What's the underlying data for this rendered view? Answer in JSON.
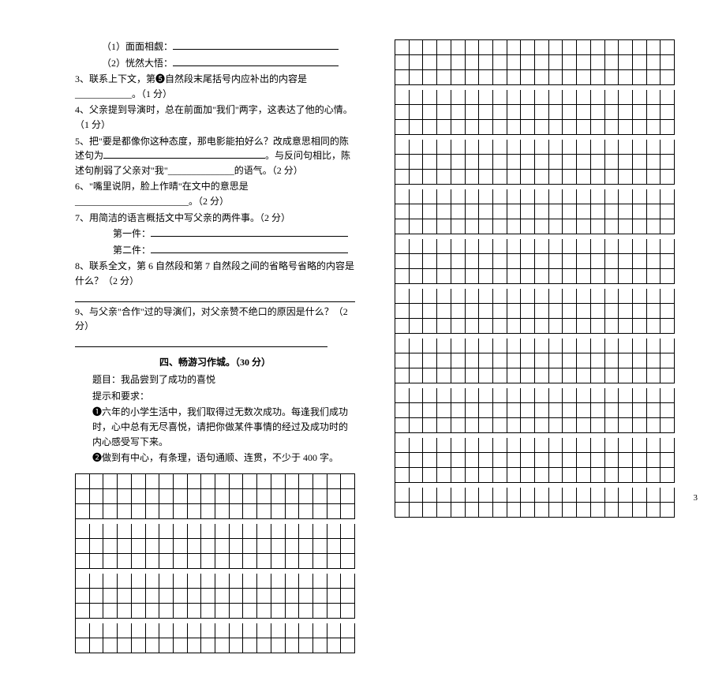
{
  "q1_sub1": "（1）面面相觑：",
  "q1_sub2": "（2）恍然大悟：",
  "q3": "3、联系上下文，第❺自然段末尾括号内应补出的内容是____________。（1 分）",
  "q4": "4、父亲提到导演时，总在前面加\"我们\"两字，这表达了他的心情。（1 分）",
  "q5a": "5、把\"要是都像你这种态度，那电影能拍好么？改成意思相同的陈述句为",
  "q5b": "。与反问句相比，陈述句削弱了父亲对\"我\"______________的语气。（2 分）",
  "q6": "6、\"嘴里说阴，脸上作晴\"在文中的意思是________________________。（2 分）",
  "q7": "7、用简洁的语言概括文中写父亲的两件事。（2 分）",
  "q7_sub1": "第一件：",
  "q7_sub2": "第二件：",
  "q8": "8、联系全文，第 6 自然段和第 7 自然段之间的省略号省略的内容是什么？（2 分）",
  "q9": "9、与父亲\"合作\"过的导演们，对父亲赞不绝口的原因是什么？（2 分）",
  "section4_title": "四、畅游习作城。（30 分）",
  "essay_topic": "题目：我品尝到了成功的喜悦",
  "essay_hint": "提示和要求：",
  "essay_req1": "❶六年的小学生活中，我们取得过无数次成功。每逢我们成功时，心中总有无尽喜悦，请把你做某件事情的经过及成功时的内心感受写下来。",
  "essay_req2": "❷做到有中心，有条理，语句通顺、连贯，不少于 400 字。",
  "page_number": "3",
  "grid": {
    "cols": 20,
    "left_blocks": [
      3,
      3,
      3,
      2
    ],
    "right_blocks": [
      3,
      3,
      3,
      3,
      3,
      3,
      3,
      3,
      3,
      2
    ]
  },
  "colors": {
    "text": "#000000",
    "background": "#ffffff",
    "line": "#000000"
  }
}
